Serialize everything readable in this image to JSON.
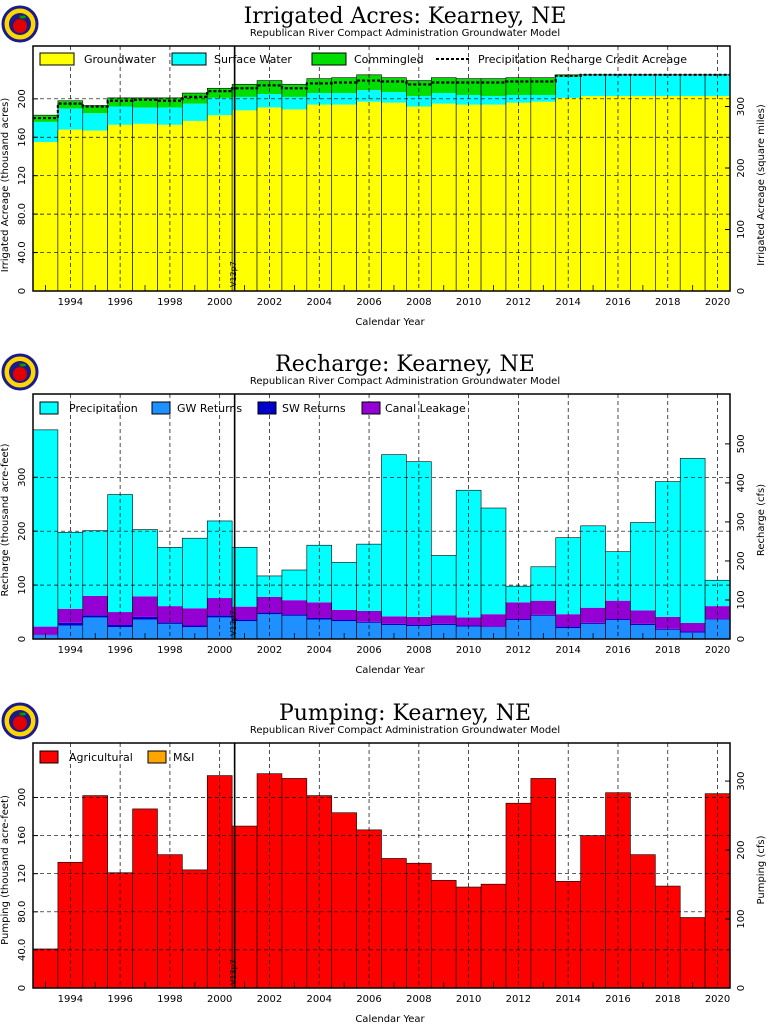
{
  "colors": {
    "groundwater": "#ffff00",
    "surface_water": "#00ffff",
    "commingled": "#00dd00",
    "precipitation": "#00ffff",
    "gw_returns": "#1e90ff",
    "sw_returns": "#0000cd",
    "canal_leakage": "#9400d3",
    "agricultural": "#ff0000",
    "mi": "#ffa500"
  },
  "charts": {
    "irrigated": {
      "title": "Irrigated Acres: Kearney, NE",
      "subtitle": "Republican River Compact Administration Groundwater Model",
      "xlabel": "Calendar Year",
      "ylabel_left": "Irrigated Acreage (thousand acres)",
      "ylabel_right": "Irrigated Acreage (square miles)",
      "marker_label": "V12p7",
      "legend": [
        "Groundwater",
        "Surface Water",
        "Commingled",
        "Precipitation Recharge Credit Acreage"
      ]
    },
    "recharge": {
      "title": "Recharge: Kearney, NE",
      "subtitle": "Republican River Compact Administration Groundwater Model",
      "xlabel": "Calendar Year",
      "ylabel_left": "Recharge (thousand acre-feet)",
      "ylabel_right": "Recharge (cfs)",
      "marker_label": "V12p7",
      "legend": [
        "Precipitation",
        "GW Returns",
        "SW Returns",
        "Canal Leakage"
      ]
    },
    "pumping": {
      "title": "Pumping: Kearney, NE",
      "subtitle": "Republican River Compact Administration Groundwater Model",
      "xlabel": "Calendar Year",
      "ylabel_left": "Pumping (thousand acre-feet)",
      "ylabel_right": "Pumping (cfs)",
      "marker_label": "V12p7",
      "legend": [
        "Agricultural",
        "M&I"
      ]
    }
  },
  "chart_data": [
    {
      "type": "bar",
      "stacked": true,
      "x": [
        1993,
        1994,
        1995,
        1996,
        1997,
        1998,
        1999,
        2000,
        2001,
        2002,
        2003,
        2004,
        2005,
        2006,
        2007,
        2008,
        2009,
        2010,
        2011,
        2012,
        2013,
        2014,
        2015,
        2016,
        2017,
        2018,
        2019,
        2020
      ],
      "series": [
        {
          "name": "Groundwater",
          "values": [
            155,
            168,
            167,
            173,
            174,
            173,
            177,
            183,
            188,
            191,
            189,
            194,
            194,
            197,
            196,
            192,
            195,
            194,
            194,
            196,
            197,
            201,
            203,
            203,
            203,
            203,
            203,
            203
          ]
        },
        {
          "name": "Surface Water",
          "values": [
            21,
            22,
            18,
            19,
            17,
            18,
            18,
            18,
            14,
            14,
            13,
            12,
            12,
            12,
            11,
            11,
            11,
            10,
            9,
            8,
            7,
            22,
            22,
            22,
            22,
            22,
            22,
            22
          ]
        },
        {
          "name": "Commingled",
          "values": [
            7,
            8,
            8,
            9,
            10,
            10,
            11,
            10,
            13,
            14,
            13,
            15,
            16,
            16,
            15,
            16,
            16,
            17,
            18,
            18,
            18,
            2,
            0,
            0,
            0,
            0,
            0,
            0
          ]
        }
      ],
      "line": {
        "name": "Precipitation Recharge Credit Acreage",
        "values": [
          180,
          195,
          192,
          198,
          199,
          198,
          202,
          208,
          211,
          214,
          211,
          216,
          217,
          219,
          218,
          215,
          217,
          217,
          217,
          218,
          218,
          224,
          225,
          225,
          225,
          225,
          225,
          225
        ]
      },
      "xlabel": "Calendar Year",
      "ylabel": "Irrigated Acreage (thousand acres)",
      "y2label": "Irrigated Acreage (square miles)",
      "ylim": [
        0,
        230
      ],
      "y2lim": [
        0,
        359.4
      ],
      "yticks": [
        0,
        40.0,
        80.0,
        120,
        160,
        200
      ],
      "y2ticks": [
        0,
        100,
        200,
        300
      ],
      "xticks": [
        1994,
        1996,
        1998,
        2000,
        2002,
        2004,
        2006,
        2008,
        2010,
        2012,
        2014,
        2016,
        2018,
        2020
      ],
      "marker_year": 2000.6,
      "grid": true,
      "legend_position": "top"
    },
    {
      "type": "bar",
      "stacked": true,
      "x": [
        1993,
        1994,
        1995,
        1996,
        1997,
        1998,
        1999,
        2000,
        2001,
        2002,
        2003,
        2004,
        2005,
        2006,
        2007,
        2008,
        2009,
        2010,
        2011,
        2012,
        2013,
        2014,
        2015,
        2016,
        2017,
        2018,
        2019,
        2020
      ],
      "series": [
        {
          "name": "GW Returns",
          "values": [
            7,
            25,
            40,
            22,
            36,
            28,
            22,
            40,
            33,
            46,
            43,
            36,
            33,
            30,
            26,
            24,
            26,
            23,
            22,
            35,
            43,
            20,
            28,
            35,
            26,
            17,
            12,
            36
          ]
        },
        {
          "name": "SW Returns",
          "values": [
            1,
            5,
            4,
            4,
            5,
            3,
            3,
            4,
            3,
            3,
            3,
            3,
            3,
            2,
            2,
            2,
            2,
            2,
            1,
            2,
            2,
            3,
            2,
            2,
            2,
            2,
            2,
            1
          ]
        },
        {
          "name": "Canal Leakage",
          "values": [
            15,
            26,
            36,
            24,
            38,
            30,
            32,
            32,
            24,
            29,
            26,
            29,
            18,
            20,
            14,
            15,
            16,
            15,
            23,
            31,
            26,
            23,
            28,
            34,
            25,
            22,
            16,
            24
          ]
        },
        {
          "name": "Precipitation",
          "values": [
            365,
            142,
            121,
            218,
            124,
            109,
            130,
            143,
            110,
            39,
            56,
            106,
            88,
            124,
            300,
            288,
            111,
            236,
            197,
            30,
            63,
            142,
            152,
            91,
            163,
            251,
            305,
            48
          ]
        }
      ],
      "xlabel": "Calendar Year",
      "ylabel": "Recharge (thousand acre-feet)",
      "y2label": "Recharge (cfs)",
      "ylim": [
        0,
        410
      ],
      "y2lim": [
        0,
        566.3
      ],
      "yticks": [
        0,
        100,
        200,
        300
      ],
      "y2ticks": [
        0,
        100,
        200,
        300,
        400,
        500
      ],
      "xticks": [
        1994,
        1996,
        1998,
        2000,
        2002,
        2004,
        2006,
        2008,
        2010,
        2012,
        2014,
        2016,
        2018,
        2020
      ],
      "marker_year": 2000.6,
      "grid": true,
      "legend_position": "top"
    },
    {
      "type": "bar",
      "stacked": true,
      "x": [
        1993,
        1994,
        1995,
        1996,
        1997,
        1998,
        1999,
        2000,
        2001,
        2002,
        2003,
        2004,
        2005,
        2006,
        2007,
        2008,
        2009,
        2010,
        2011,
        2012,
        2013,
        2014,
        2015,
        2016,
        2017,
        2018,
        2019,
        2020
      ],
      "series": [
        {
          "name": "Agricultural",
          "values": [
            41,
            132,
            202,
            121,
            188,
            140,
            124,
            223,
            170,
            225,
            220,
            202,
            184,
            166,
            136,
            131,
            113,
            106,
            109,
            194,
            220,
            112,
            160,
            205,
            140,
            107,
            74,
            204
          ]
        },
        {
          "name": "M&I",
          "values": [
            0,
            0,
            0,
            0,
            0,
            0,
            0,
            0,
            0,
            0,
            0,
            0,
            0,
            0,
            0,
            0,
            0,
            0,
            0,
            0,
            0,
            0,
            0,
            0,
            0,
            0,
            0,
            0
          ]
        }
      ],
      "xlabel": "Calendar Year",
      "ylabel": "Pumping (thousand acre-feet)",
      "y2label": "Pumping (cfs)",
      "ylim": [
        0,
        232
      ],
      "y2lim": [
        0,
        320.4
      ],
      "yticks": [
        0,
        40.0,
        80.0,
        120,
        160,
        200
      ],
      "y2ticks": [
        0,
        100,
        200,
        300
      ],
      "xticks": [
        1994,
        1996,
        1998,
        2000,
        2002,
        2004,
        2006,
        2008,
        2010,
        2012,
        2014,
        2016,
        2018,
        2020
      ],
      "marker_year": 2000.6,
      "grid": true,
      "legend_position": "top"
    }
  ]
}
